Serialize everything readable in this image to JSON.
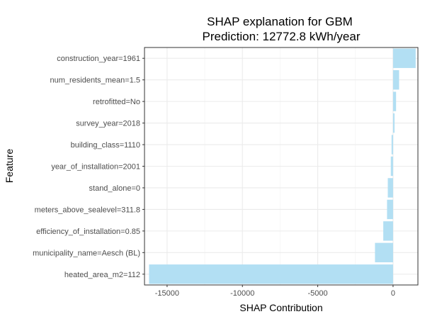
{
  "chart_data": {
    "type": "bar",
    "orientation": "horizontal",
    "title": "SHAP explanation for GBM",
    "subtitle": "Prediction: 12772.8 kWh/year",
    "xlabel": "SHAP Contribution",
    "ylabel": "Feature",
    "xlim": [
      -16500,
      1650
    ],
    "xticks": [
      -15000,
      -10000,
      -5000,
      0
    ],
    "xtick_labels": [
      "-15000",
      "-10000",
      "-5000",
      "0"
    ],
    "grid": true,
    "categories": [
      "construction_year=1961",
      "num_residents_mean=1.5",
      "retrofitted=No",
      "survey_year=2018",
      "building_class=1110",
      "year_of_installation=2001",
      "stand_alone=0",
      "meters_above_sealevel=311.8",
      "efficiency_of_installation=0.85",
      "municipality_name=Aesch (BL)",
      "heated_area_m2=112"
    ],
    "values": [
      1500,
      400,
      200,
      100,
      -100,
      -150,
      -350,
      -400,
      -650,
      -1200,
      -16200
    ],
    "bar_color": "#b2dff3"
  }
}
